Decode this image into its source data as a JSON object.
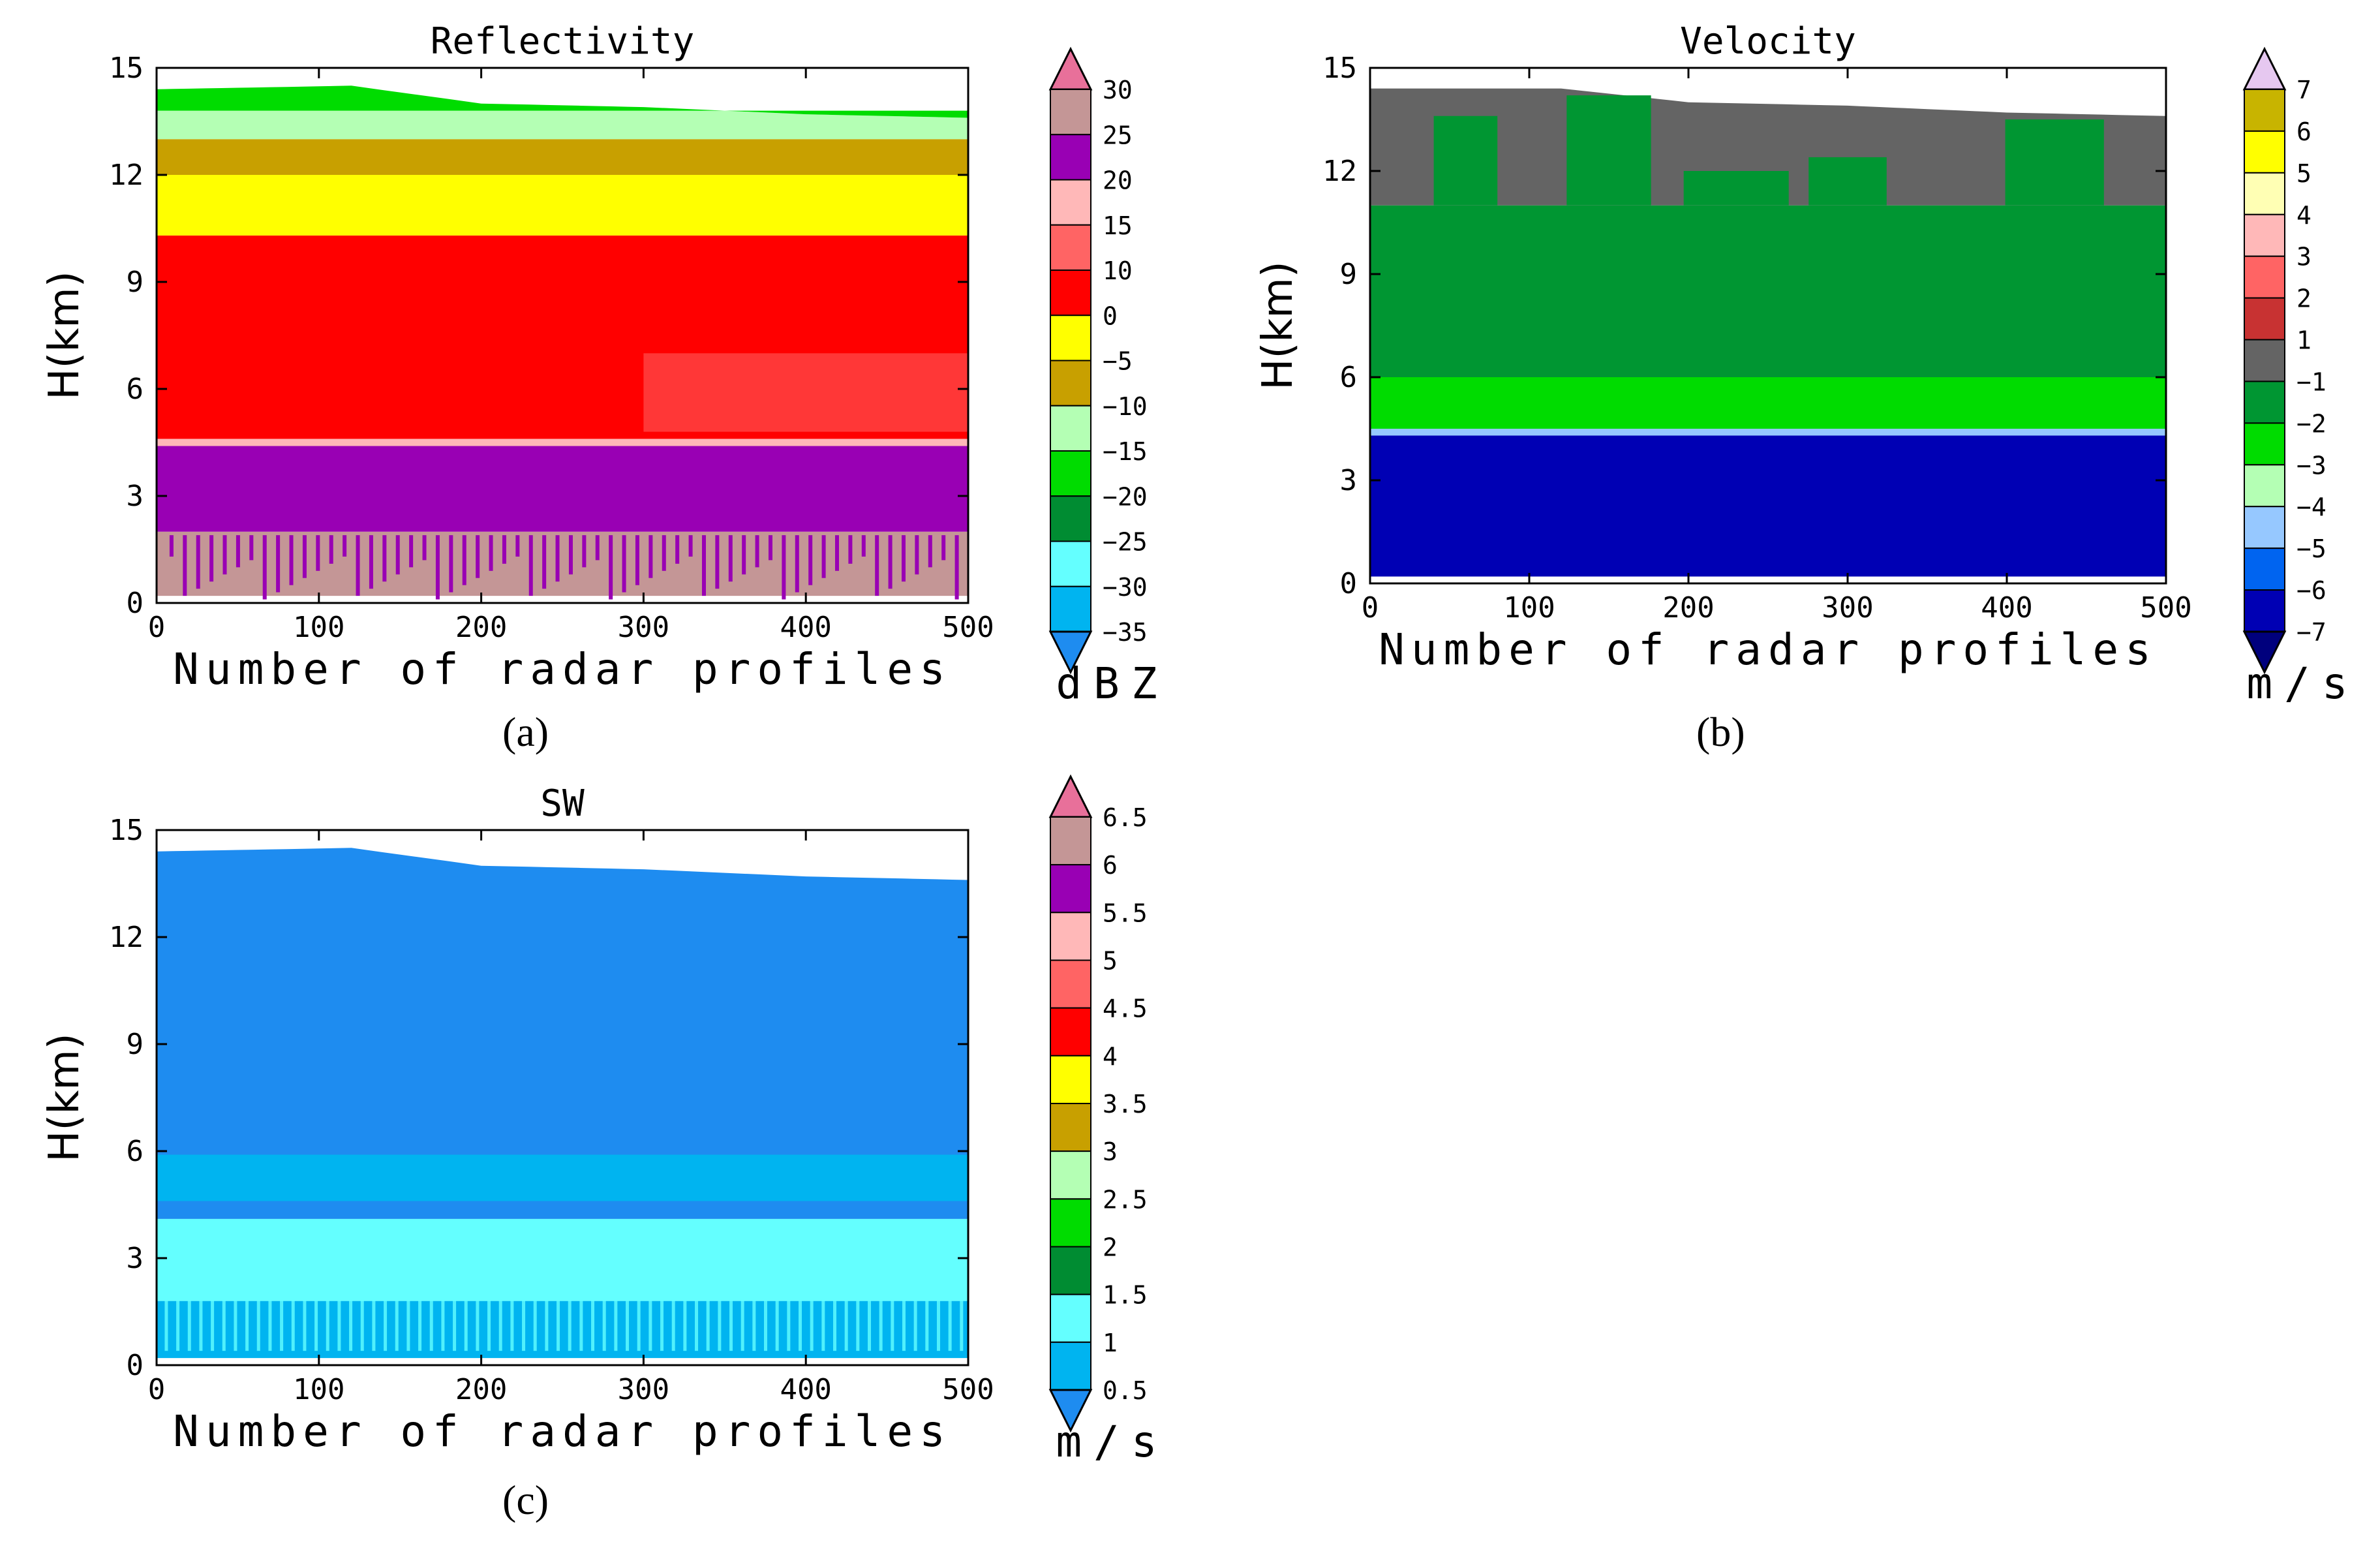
{
  "chart_data": [
    {
      "type": "heatmap",
      "panel": "(a)",
      "title": "Reflectivity",
      "xlabel": "Number of radar profiles",
      "ylabel": "H(km)",
      "xlim": [
        0,
        500
      ],
      "ylim": [
        0,
        15
      ],
      "xticks": [
        "0",
        "100",
        "200",
        "300",
        "400",
        "500"
      ],
      "yticks": [
        "0",
        "3",
        "6",
        "9",
        "12",
        "15"
      ],
      "colorbar": {
        "unit": "dBZ",
        "levels": [
          "30",
          "25",
          "20",
          "15",
          "10",
          "0",
          "−5",
          "−10",
          "−15",
          "−20",
          "−25",
          "−30",
          "−35"
        ],
        "colors": [
          "#e8709a",
          "#c49696",
          "#9900b4",
          "#ffb8b8",
          "#ff6464",
          "#ff0000",
          "#ffff00",
          "#c8a000",
          "#b4ffb4",
          "#00dc00",
          "#008c32",
          "#64ffff",
          "#00b4f0",
          "#1e8cf0"
        ]
      },
      "layers": [
        {
          "from_km": 0.2,
          "to_km": 2.0,
          "value_dbz": "25 to 30",
          "note": "lower part of layer streaked with 20 to 25"
        },
        {
          "from_km": 2.0,
          "to_km": 4.4,
          "value_dbz": "20 to 25"
        },
        {
          "from_km": 4.4,
          "to_km": 4.6,
          "value_dbz": "15 to 20",
          "note": "bright band"
        },
        {
          "from_km": 4.6,
          "to_km": 10.3,
          "value_dbz": "0 to 10",
          "note": "patches of 10 to 15 between 5 and 7 km after profile 300"
        },
        {
          "from_km": 10.3,
          "to_km": 12.0,
          "value_dbz": "-5 to 0"
        },
        {
          "from_km": 12.0,
          "to_km": 13.0,
          "value_dbz": "-10 to -5"
        },
        {
          "from_km": 13.0,
          "to_km": 13.8,
          "value_dbz": "-15 to -10"
        },
        {
          "from_km": 13.8,
          "to_km": 14.4,
          "value_dbz": "-20 to -15"
        }
      ],
      "echo_top_km": [
        [
          0,
          14.4
        ],
        [
          120,
          14.5
        ],
        [
          200,
          14.0
        ],
        [
          300,
          13.9
        ],
        [
          400,
          13.7
        ],
        [
          500,
          13.6
        ]
      ]
    },
    {
      "type": "heatmap",
      "panel": "(b)",
      "title": "Velocity",
      "xlabel": "Number of radar profiles",
      "ylabel": "H(km)",
      "xlim": [
        0,
        500
      ],
      "ylim": [
        0,
        15
      ],
      "xticks": [
        "0",
        "100",
        "200",
        "300",
        "400",
        "500"
      ],
      "yticks": [
        "0",
        "3",
        "6",
        "9",
        "12",
        "15"
      ],
      "colorbar": {
        "unit": "m/s",
        "levels": [
          "7",
          "6",
          "5",
          "4",
          "3",
          "2",
          "1",
          "−1",
          "−2",
          "−3",
          "−4",
          "−5",
          "−6",
          "−7"
        ],
        "colors": [
          "#e6c8f0",
          "#c8b400",
          "#ffff00",
          "#ffffb4",
          "#ffb8b8",
          "#ff6464",
          "#c83232",
          "#646464",
          "#009632",
          "#00dc00",
          "#b4ffb4",
          "#96c8ff",
          "#0064f0",
          "#0000b4",
          "#00007d"
        ]
      },
      "layers": [
        {
          "from_km": 0.2,
          "to_km": 4.3,
          "value_ms": "-7 to -6"
        },
        {
          "from_km": 4.3,
          "to_km": 4.5,
          "value_ms": "-5 to -3",
          "note": "melting layer"
        },
        {
          "from_km": 4.5,
          "to_km": 6.0,
          "value_ms": "-3 to -2"
        },
        {
          "from_km": 6.0,
          "to_km": 11.0,
          "value_ms": "-2 to -1"
        },
        {
          "from_km": 11.0,
          "to_km": 14.4,
          "value_ms": "-1 to 1",
          "note": "mixed with -2 to -1 plumes"
        }
      ],
      "echo_top_km": [
        [
          0,
          14.4
        ],
        [
          120,
          14.4
        ],
        [
          200,
          14.0
        ],
        [
          300,
          13.9
        ],
        [
          400,
          13.7
        ],
        [
          500,
          13.6
        ]
      ]
    },
    {
      "type": "heatmap",
      "panel": "(c)",
      "title": "SW",
      "xlabel": "Number of radar profiles",
      "ylabel": "H(km)",
      "xlim": [
        0,
        500
      ],
      "ylim": [
        0,
        15
      ],
      "xticks": [
        "0",
        "100",
        "200",
        "300",
        "400",
        "500"
      ],
      "yticks": [
        "0",
        "3",
        "6",
        "9",
        "12",
        "15"
      ],
      "colorbar": {
        "unit": "m/s",
        "levels": [
          "6.5",
          "6",
          "5.5",
          "5",
          "4.5",
          "4",
          "3.5",
          "3",
          "2.5",
          "2",
          "1.5",
          "1",
          "0.5"
        ],
        "colors": [
          "#e8709a",
          "#c49696",
          "#9900b4",
          "#ffb8b8",
          "#ff6464",
          "#ff0000",
          "#ffff00",
          "#c8a000",
          "#b4ffb4",
          "#00dc00",
          "#008c32",
          "#64ffff",
          "#00b4f0",
          "#1e8cf0"
        ]
      },
      "layers": [
        {
          "from_km": 0.2,
          "to_km": 1.8,
          "value_ms": "0.5 to 1",
          "note": "streaked with 1 to 1.5"
        },
        {
          "from_km": 1.8,
          "to_km": 4.1,
          "value_ms": "1 to 1.5"
        },
        {
          "from_km": 4.1,
          "to_km": 4.6,
          "value_ms": "below 0.5 to 1",
          "note": "melting layer"
        },
        {
          "from_km": 4.6,
          "to_km": 5.9,
          "value_ms": "0.5 to 1"
        },
        {
          "from_km": 5.9,
          "to_km": 14.4,
          "value_ms": "below 0.5"
        }
      ],
      "echo_top_km": [
        [
          0,
          14.4
        ],
        [
          120,
          14.5
        ],
        [
          200,
          14.0
        ],
        [
          300,
          13.9
        ],
        [
          400,
          13.7
        ],
        [
          500,
          13.6
        ]
      ]
    }
  ]
}
